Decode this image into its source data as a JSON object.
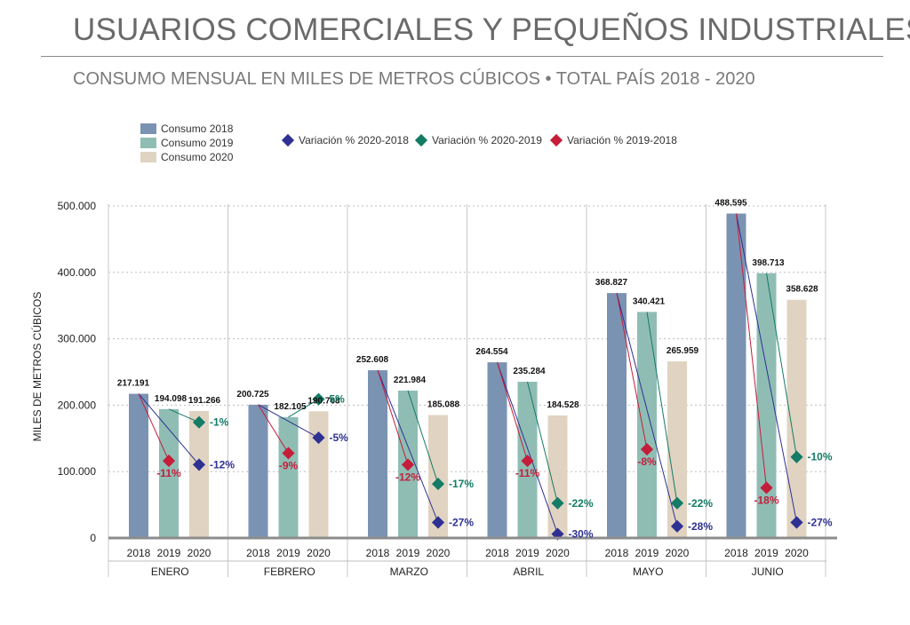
{
  "header": {
    "title": "USUARIOS COMERCIALES Y PEQUEÑOS INDUSTRIALES",
    "subtitle": "CONSUMO MENSUAL EN MILES DE METROS CÚBICOS •  TOTAL PAÍS 2018 - 2020"
  },
  "colors": {
    "c2018": "#7b93b2",
    "c2019": "#8fbdb4",
    "c2020": "#e0d3c1",
    "v2020_2018": "#2e3192",
    "v2020_2019": "#137b66",
    "v2019_2018": "#c41e3a"
  },
  "chart_data": {
    "type": "bar",
    "ylabel": "MILES DE METROS CÚBICOS",
    "ylim": [
      0,
      500000
    ],
    "yticks": [
      "0",
      "100.000",
      "200.000",
      "300.000",
      "400.000",
      "500.000"
    ],
    "ytick_values": [
      0,
      100000,
      200000,
      300000,
      400000,
      500000
    ],
    "grid": true,
    "legend_position": "top-left",
    "categories": [
      "ENERO",
      "FEBRERO",
      "MARZO",
      "ABRIL",
      "MAYO",
      "JUNIO"
    ],
    "year_labels": [
      "2018",
      "2019",
      "2020"
    ],
    "series": [
      {
        "name": "Consumo 2018",
        "values": [
          217191,
          200725,
          252608,
          264554,
          368827,
          488595
        ],
        "labels": [
          "217.191",
          "200.725",
          "252.608",
          "264.554",
          "368.827",
          "488.595"
        ]
      },
      {
        "name": "Consumo 2019",
        "values": [
          194098,
          182105,
          221984,
          235284,
          340421,
          398713
        ],
        "labels": [
          "194.098",
          "182.105",
          "221.984",
          "235.284",
          "340.421",
          "398.713"
        ]
      },
      {
        "name": "Consumo 2020",
        "values": [
          191266,
          190768,
          185088,
          184528,
          265959,
          358628
        ],
        "labels": [
          "191.266",
          "190.768",
          "185.088",
          "184.528",
          "265.959",
          "358.628"
        ]
      }
    ],
    "variations": [
      {
        "name": "Variación % 2020-2018",
        "values": [
          -12,
          -5,
          -27,
          -30,
          -28,
          -27
        ],
        "labels": [
          "-12%",
          "-5%",
          "-27%",
          "-30%",
          "-28%",
          "-27%"
        ]
      },
      {
        "name": "Variación % 2020-2019",
        "values": [
          -1,
          5,
          -17,
          -22,
          -22,
          -10
        ],
        "labels": [
          "-1%",
          "5%",
          "-17%",
          "-22%",
          "-22%",
          "-10%"
        ]
      },
      {
        "name": "Variación % 2019-2018",
        "values": [
          -11,
          -9,
          -12,
          -11,
          -8,
          -18
        ],
        "labels": [
          "-11%",
          "-9%",
          "-12%",
          "-11%",
          "-8%",
          "-18%"
        ]
      }
    ]
  }
}
